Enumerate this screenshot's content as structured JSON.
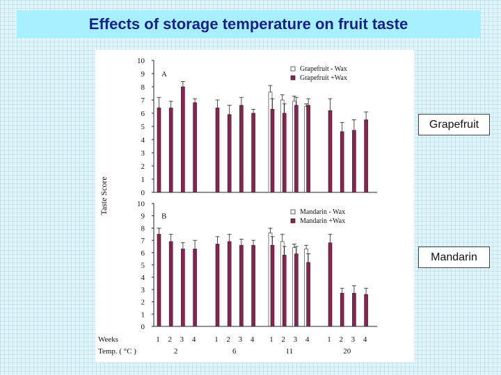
{
  "title": "Effects of storage temperature on fruit taste",
  "callouts": {
    "grapefruit": "Grapefruit",
    "mandarin": "Mandarin"
  },
  "chart_data": {
    "type": "bar",
    "ylabel": "Taste Score",
    "ylim": [
      0,
      10
    ],
    "yticks": [
      "0",
      "1",
      "2",
      "3",
      "4",
      "5",
      "6",
      "7",
      "8",
      "9",
      "10"
    ],
    "x_row1_label": "Weeks",
    "x_row2_label": "Temp. ( °C )",
    "weeks": [
      "1",
      "2",
      "3",
      "4"
    ],
    "temperatures": [
      "2",
      "6",
      "11",
      "20"
    ],
    "colors": {
      "minus_wax": "#ffffff",
      "plus_wax": "#8b2252"
    },
    "panels": [
      {
        "label": "A",
        "series": [
          {
            "name": "Grapefruit  - Wax",
            "values": [
              null,
              null,
              null,
              null,
              null,
              null,
              null,
              null,
              7.6,
              7.0,
              6.9,
              6.5,
              null,
              null,
              null,
              null
            ],
            "errors": [
              0,
              0,
              0,
              0,
              0,
              0,
              0,
              0,
              0.5,
              0.4,
              0.4,
              0.2,
              0,
              0,
              0,
              0
            ]
          },
          {
            "name": "Grapefruit +Wax",
            "values": [
              6.4,
              6.4,
              8.0,
              6.8,
              6.4,
              5.9,
              6.6,
              6.0,
              6.3,
              6.0,
              6.6,
              6.6,
              6.2,
              4.6,
              4.7,
              5.5
            ],
            "errors": [
              0.8,
              0.5,
              0.4,
              0.3,
              0.6,
              0.7,
              0.6,
              0.3,
              0.8,
              0.7,
              0.6,
              0.5,
              0.9,
              0.7,
              0.8,
              0.6
            ]
          }
        ]
      },
      {
        "label": "B",
        "series": [
          {
            "name": "Mandarin  - Wax",
            "values": [
              null,
              null,
              null,
              null,
              null,
              null,
              null,
              null,
              7.6,
              6.9,
              6.4,
              6.3,
              null,
              null,
              null,
              null
            ],
            "errors": [
              0,
              0,
              0,
              0,
              0,
              0,
              0,
              0,
              0.4,
              0.6,
              0.3,
              0.3,
              0,
              0,
              0,
              0
            ]
          },
          {
            "name": "Mandarin +Wax",
            "values": [
              7.5,
              6.9,
              6.3,
              6.3,
              6.7,
              6.9,
              6.6,
              6.6,
              6.6,
              5.8,
              5.9,
              5.2,
              6.8,
              2.7,
              2.7,
              2.6
            ],
            "errors": [
              0.5,
              0.6,
              0.5,
              0.7,
              0.6,
              0.6,
              0.5,
              0.4,
              0.7,
              0.7,
              0.6,
              0.7,
              0.7,
              0.4,
              0.6,
              0.5
            ]
          }
        ]
      }
    ]
  }
}
